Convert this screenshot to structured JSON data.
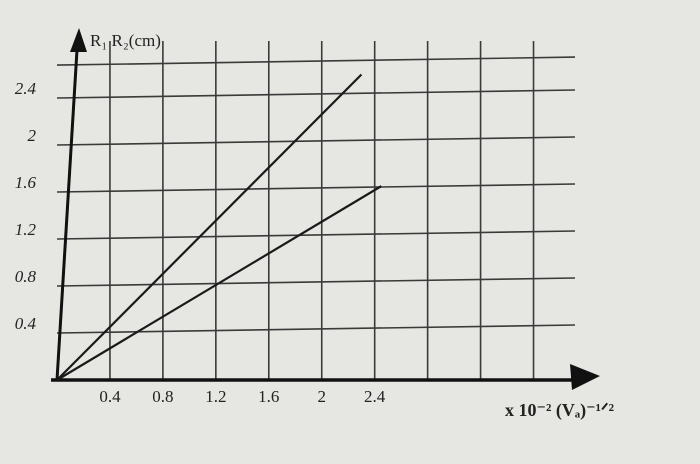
{
  "chart_data": {
    "type": "line",
    "ylabel": "R₁  R₂(cm)",
    "xlabel": "x 10⁻² (Vₐ)⁻¹ᐟ²",
    "series": [
      {
        "color": "#1a1a1a",
        "x": [
          0,
          2.3
        ],
        "values": [
          0,
          2.6
        ]
      },
      {
        "color": "#1a1a1a",
        "x": [
          0,
          2.45
        ],
        "values": [
          0,
          1.65
        ]
      }
    ],
    "xlim": [
      0,
      3.8
    ],
    "ylim": [
      0,
      2.8
    ],
    "xticks": [
      0.4,
      0.8,
      1.2,
      1.6,
      2.0,
      2.4
    ],
    "yticks": [
      0.4,
      0.8,
      1.2,
      1.6,
      2.0,
      2.4
    ],
    "grid": true
  }
}
